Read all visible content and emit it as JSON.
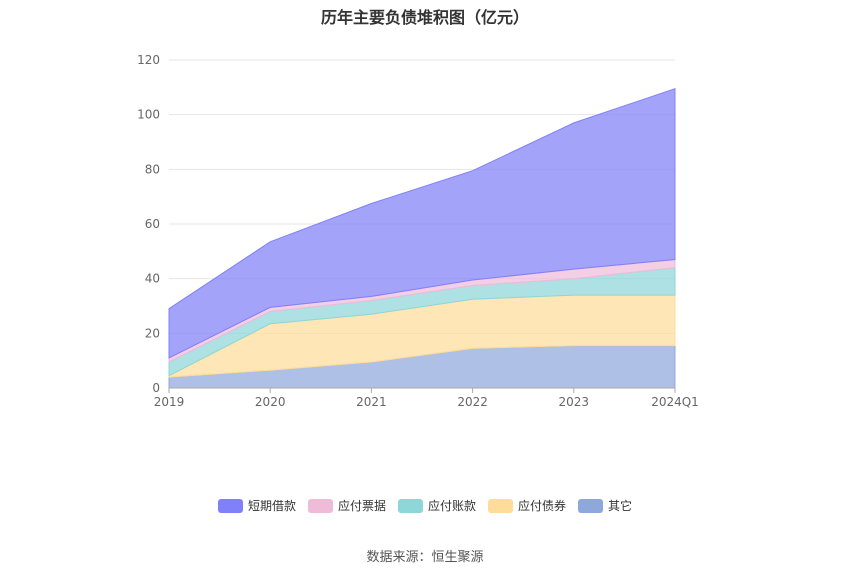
{
  "chart_data": {
    "type": "area",
    "stacked": true,
    "title": "历年主要负债堆积图（亿元）",
    "categories": [
      "2019",
      "2020",
      "2021",
      "2022",
      "2023",
      "2024Q1"
    ],
    "ylim": [
      0,
      120
    ],
    "yticks": [
      "0",
      "20",
      "40",
      "60",
      "80",
      "100",
      "120"
    ],
    "grid": true,
    "legend_position": "bottom",
    "series": [
      {
        "name": "其它",
        "color": "#8fa8dc",
        "values": [
          4,
          6.5,
          9.5,
          14.5,
          15.5,
          15.5
        ]
      },
      {
        "name": "应付债券",
        "color": "#ffdc9a",
        "values": [
          0.5,
          17,
          17.5,
          18,
          18.5,
          18.5
        ]
      },
      {
        "name": "应付账款",
        "color": "#8ed6d8",
        "values": [
          5,
          4.5,
          5,
          5,
          6,
          10
        ]
      },
      {
        "name": "应付票据",
        "color": "#efbbd9",
        "values": [
          1.5,
          1.5,
          1.5,
          2,
          3.5,
          3
        ]
      },
      {
        "name": "短期借款",
        "color": "#8080f8",
        "values": [
          18,
          24,
          34,
          40,
          53.5,
          62.5
        ]
      }
    ],
    "legend_order": [
      "短期借款",
      "应付票据",
      "应付账款",
      "应付债券",
      "其它"
    ]
  },
  "source_text": "数据来源：恒生聚源"
}
